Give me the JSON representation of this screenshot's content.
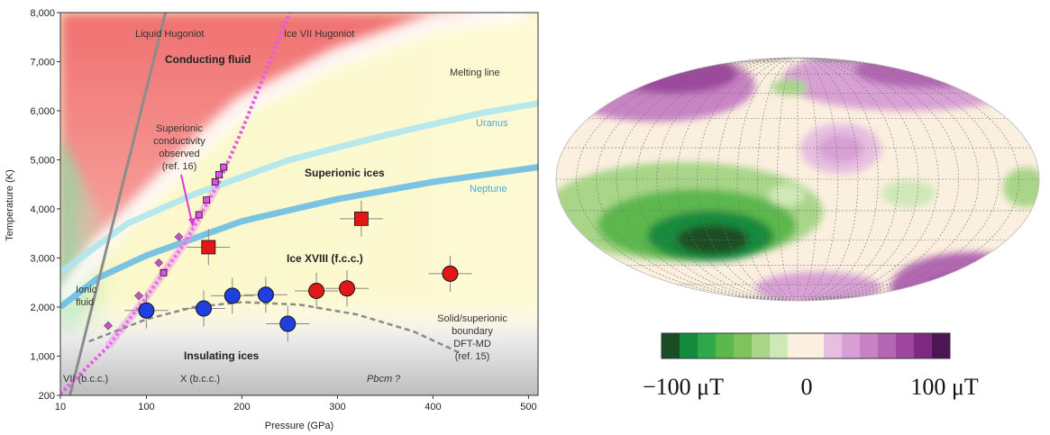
{
  "chart_data": [
    {
      "type": "scatter",
      "xlabel": "Pressure (GPa)",
      "ylabel": "Temperature (K)",
      "xlim": [
        10,
        510
      ],
      "ylim": [
        200,
        8000
      ],
      "x_ticks": [
        "10",
        "100",
        "200",
        "300",
        "400",
        "500"
      ],
      "y_ticks": [
        "200",
        "1,000",
        "2,000",
        "3,000",
        "4,000",
        "5,000",
        "6,000",
        "7,000",
        "8,000"
      ],
      "region_labels": {
        "conducting": "Conducting fluid",
        "superionic": "Superionic ices",
        "ice18": "Ice XVIII (f.c.c.)",
        "insulating": "Insulating ices",
        "ionic": [
          "Ionic",
          "fluid"
        ],
        "pbcm": "Pbcm ?",
        "vii": "VII (b.c.c.)",
        "x": "X (b.c.c.)"
      },
      "line_labels": {
        "liquid_hugoniot": "Liquid Hugoniot",
        "ice7_hugoniot": "Ice VII Hugoniot",
        "melting": "Melting line",
        "uranus": "Uranus",
        "neptune": "Neptune",
        "boundary": [
          "Solid/superionic",
          "boundary",
          "DFT-MD",
          "(ref. 15)"
        ],
        "conductivity": [
          "Superionic",
          "conductivity",
          "observed",
          "(ref. 16)"
        ]
      },
      "series": [
        {
          "marker": "circle",
          "color": "#1f3fe0",
          "points": [
            [
              100,
              1930
            ],
            [
              160,
              1970
            ],
            [
              190,
              2230
            ],
            [
              225,
              2250
            ],
            [
              248,
              1660
            ]
          ]
        },
        {
          "marker": "circle",
          "color": "#e01818",
          "points": [
            [
              278,
              2330
            ],
            [
              310,
              2380
            ],
            [
              418,
              2680
            ]
          ]
        },
        {
          "marker": "square",
          "color": "#e01818",
          "points": [
            [
              165,
              3220
            ],
            [
              325,
              3800
            ]
          ]
        },
        {
          "marker": "square",
          "color": "#e050e8",
          "points": [
            [
              118,
              2700
            ],
            [
              155,
              3880
            ],
            [
              163,
              4180
            ],
            [
              172,
              4550
            ],
            [
              176,
              4700
            ],
            [
              181,
              4850
            ]
          ]
        },
        {
          "marker": "diamond",
          "color": "#c650c8",
          "points": [
            [
              60,
              1620
            ],
            [
              92,
              2230
            ],
            [
              113,
              2900
            ],
            [
              134,
              3430
            ]
          ]
        }
      ],
      "curves": {
        "liquid_hugoniot": [
          [
            20,
            200
          ],
          [
            120,
            8000
          ]
        ],
        "ice7_hugoniot": [
          [
            10,
            230
          ],
          [
            60,
            1200
          ],
          [
            100,
            2200
          ],
          [
            140,
            3300
          ],
          [
            175,
            4500
          ],
          [
            200,
            5600
          ],
          [
            225,
            6800
          ],
          [
            250,
            8000
          ]
        ],
        "melting": [
          [
            10,
            2100
          ],
          [
            50,
            3200
          ],
          [
            100,
            4200
          ],
          [
            150,
            5200
          ],
          [
            200,
            6100
          ],
          [
            300,
            7100
          ],
          [
            400,
            7800
          ],
          [
            500,
            8050
          ]
        ],
        "uranus": [
          [
            10,
            2700
          ],
          [
            80,
            3700
          ],
          [
            150,
            4300
          ],
          [
            250,
            5000
          ],
          [
            350,
            5500
          ],
          [
            450,
            5950
          ],
          [
            510,
            6150
          ]
        ],
        "neptune": [
          [
            10,
            2000
          ],
          [
            50,
            2600
          ],
          [
            100,
            3050
          ],
          [
            200,
            3750
          ],
          [
            300,
            4200
          ],
          [
            400,
            4550
          ],
          [
            510,
            4850
          ]
        ],
        "boundary": [
          [
            40,
            1300
          ],
          [
            100,
            1750
          ],
          [
            150,
            2000
          ],
          [
            200,
            2100
          ],
          [
            260,
            2050
          ],
          [
            320,
            1850
          ],
          [
            380,
            1500
          ],
          [
            430,
            1050
          ]
        ]
      }
    },
    {
      "type": "heatmap",
      "colorbar": {
        "tick_labels": [
          "−100 μT",
          "0",
          "100 μT"
        ],
        "colors": [
          "#1b4d24",
          "#148a3c",
          "#2ea84a",
          "#5bb84d",
          "#7ec35c",
          "#a8d588",
          "#cfe8b8",
          "#fbefdf",
          "#fbefdf",
          "#e6bfe0",
          "#d8a0d4",
          "#c883c4",
          "#b466b2",
          "#9e469f",
          "#7e2a82",
          "#4d1552"
        ]
      }
    }
  ]
}
